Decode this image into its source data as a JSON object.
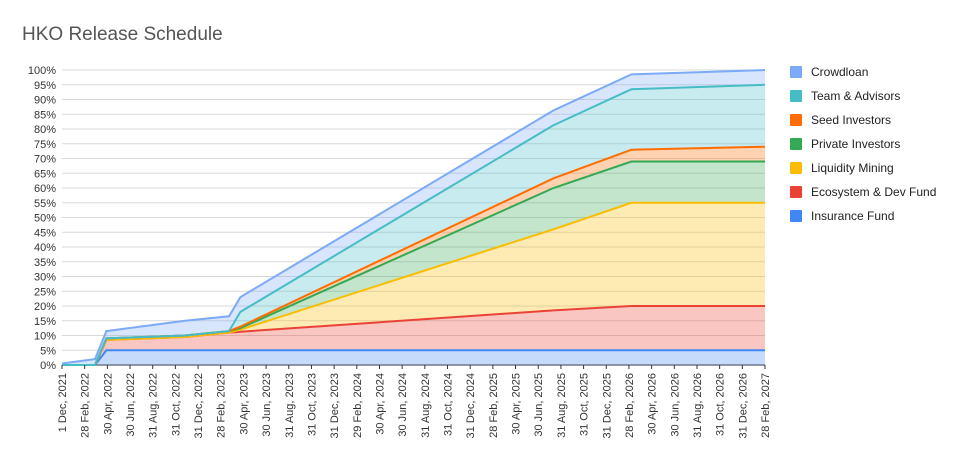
{
  "chart_data": {
    "type": "area",
    "title": "HKO Release Schedule",
    "xlabel": "",
    "ylabel": "",
    "ylim": [
      0,
      100
    ],
    "y_ticks": [
      "0%",
      "5%",
      "10%",
      "15%",
      "20%",
      "25%",
      "30%",
      "35%",
      "40%",
      "45%",
      "50%",
      "55%",
      "60%",
      "65%",
      "70%",
      "75%",
      "80%",
      "85%",
      "90%",
      "95%",
      "100%"
    ],
    "x_ticks": [
      "1 Dec, 2021",
      "28 Feb, 2022",
      "30 Apr, 2022",
      "30 Jun, 2022",
      "31 Aug, 2022",
      "31 Oct, 2022",
      "31 Dec, 2022",
      "28 Feb, 2023",
      "30 Apr, 2023",
      "30 Jun, 2023",
      "31 Aug, 2023",
      "31 Oct, 2023",
      "31 Dec, 2023",
      "29 Feb, 2024",
      "30 Apr, 2024",
      "30 Jun, 2024",
      "31 Aug, 2024",
      "31 Oct, 2024",
      "31 Dec, 2024",
      "28 Feb, 2025",
      "30 Apr, 2025",
      "30 Jun, 2025",
      "31 Aug, 2025",
      "31 Oct, 2025",
      "31 Dec, 2025",
      "28 Feb, 2026",
      "30 Apr, 2026",
      "30 Jun, 2026",
      "31 Aug, 2026",
      "31 Oct, 2026",
      "31 Dec, 2026",
      "28 Feb, 2027"
    ],
    "stacked": true,
    "grid": true,
    "legend_position": "right",
    "x_breakpoints": [
      "2021-12-01",
      "2022-02-28",
      "2022-03-01",
      "2022-04-01",
      "2022-11-01",
      "2023-03-01",
      "2023-04-01",
      "2025-08-01",
      "2026-03-01",
      "2027-02-28"
    ],
    "series": [
      {
        "name": "Insurance Fund",
        "color": "#4285f4",
        "values": [
          0,
          0,
          0,
          5,
          5,
          5,
          5,
          5,
          5,
          5
        ]
      },
      {
        "name": "Ecosystem & Dev Fund",
        "color": "#ea4335",
        "values": [
          0,
          0,
          0,
          3.5,
          4.5,
          6,
          6.3,
          13.5,
          15,
          15
        ]
      },
      {
        "name": "Liquidity Mining",
        "color": "#fbbc04",
        "values": [
          0,
          0,
          0,
          0,
          0,
          0,
          0.7,
          27.5,
          35,
          35
        ]
      },
      {
        "name": "Private Investors",
        "color": "#34a853",
        "values": [
          0,
          0,
          0,
          0.5,
          0.5,
          0.5,
          0.5,
          14,
          14,
          14
        ]
      },
      {
        "name": "Seed Investors",
        "color": "#ff6d01",
        "values": [
          0,
          0,
          0,
          0,
          0,
          0,
          0.5,
          3.3,
          4,
          5
        ]
      },
      {
        "name": "Team & Advisors",
        "color": "#46bdc6",
        "values": [
          0,
          0,
          0,
          0,
          0,
          0,
          5,
          18,
          20.5,
          21
        ]
      },
      {
        "name": "Crowdloan",
        "color": "#7baaf7",
        "values": [
          0.5,
          2,
          2,
          2.5,
          5,
          5,
          5,
          5,
          5,
          5
        ]
      }
    ]
  }
}
